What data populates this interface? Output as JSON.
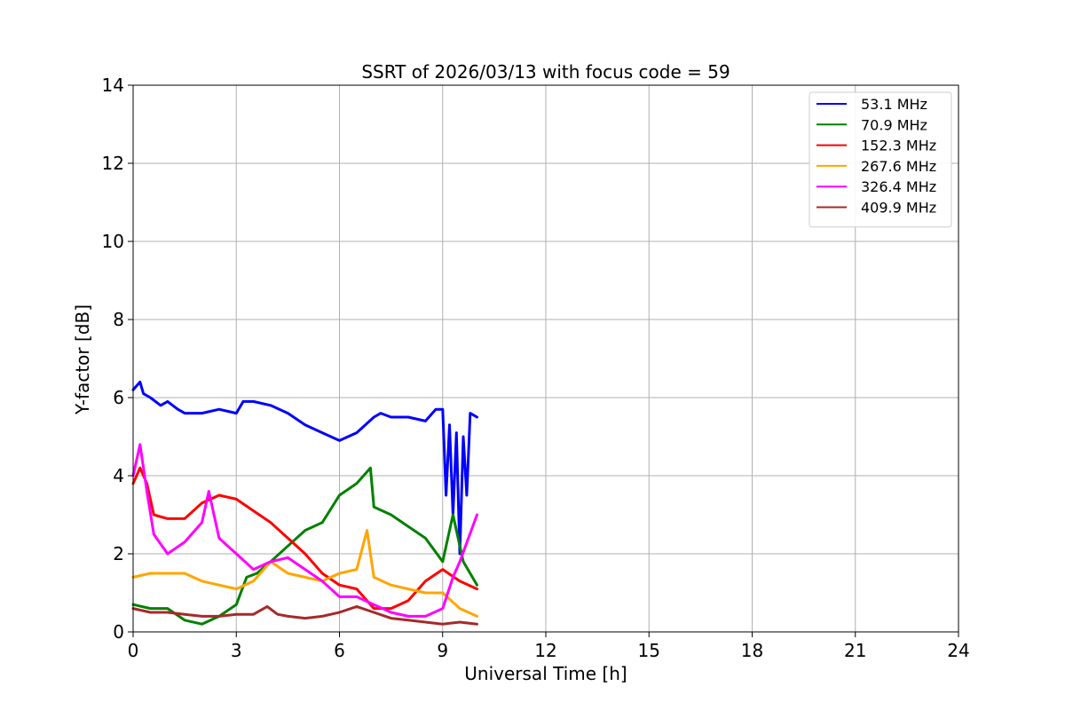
{
  "chart_data": {
    "type": "line",
    "title": "SSRT of 2026/03/13 with focus code = 59",
    "xlabel": "Universal Time [h]",
    "ylabel": "Y-factor [dB]",
    "xlim": [
      0,
      24
    ],
    "ylim": [
      0,
      14
    ],
    "xticks": [
      0,
      3,
      6,
      9,
      12,
      15,
      18,
      21,
      24
    ],
    "yticks": [
      0,
      2,
      4,
      6,
      8,
      10,
      12,
      14
    ],
    "grid": true,
    "legend_position": "top-right",
    "series": [
      {
        "name": " 53.1 MHz",
        "color": "#0000ff",
        "x": [
          0.0,
          0.2,
          0.3,
          0.5,
          0.8,
          1.0,
          1.3,
          1.5,
          2.0,
          2.5,
          3.0,
          3.2,
          3.5,
          4.0,
          4.5,
          5.0,
          5.5,
          6.0,
          6.5,
          7.0,
          7.2,
          7.5,
          8.0,
          8.5,
          8.8,
          9.0,
          9.1,
          9.2,
          9.3,
          9.4,
          9.5,
          9.6,
          9.7,
          9.8,
          10.0
        ],
        "y": [
          6.2,
          6.4,
          6.1,
          6.0,
          5.8,
          5.9,
          5.7,
          5.6,
          5.6,
          5.7,
          5.6,
          5.9,
          5.9,
          5.8,
          5.6,
          5.3,
          5.1,
          4.9,
          5.1,
          5.5,
          5.6,
          5.5,
          5.5,
          5.4,
          5.7,
          5.7,
          3.5,
          5.3,
          3.0,
          5.1,
          2.0,
          5.0,
          3.5,
          5.6,
          5.5
        ]
      },
      {
        "name": " 70.9 MHz",
        "color": "#008000",
        "x": [
          0.0,
          0.5,
          1.0,
          1.5,
          2.0,
          2.5,
          3.0,
          3.3,
          3.6,
          4.0,
          4.5,
          5.0,
          5.5,
          6.0,
          6.5,
          6.9,
          7.0,
          7.5,
          8.0,
          8.5,
          9.0,
          9.3,
          9.6,
          10.0
        ],
        "y": [
          0.7,
          0.6,
          0.6,
          0.3,
          0.2,
          0.4,
          0.7,
          1.4,
          1.5,
          1.8,
          2.2,
          2.6,
          2.8,
          3.5,
          3.8,
          4.2,
          3.2,
          3.0,
          2.7,
          2.4,
          1.8,
          3.0,
          1.8,
          1.2
        ]
      },
      {
        "name": "152.3 MHz",
        "color": "#ff0000",
        "x": [
          0.0,
          0.2,
          0.4,
          0.6,
          1.0,
          1.5,
          2.0,
          2.5,
          3.0,
          3.5,
          4.0,
          4.5,
          5.0,
          5.5,
          6.0,
          6.5,
          7.0,
          7.5,
          8.0,
          8.5,
          9.0,
          9.5,
          10.0
        ],
        "y": [
          3.8,
          4.2,
          3.8,
          3.0,
          2.9,
          2.9,
          3.3,
          3.5,
          3.4,
          3.1,
          2.8,
          2.4,
          2.0,
          1.5,
          1.2,
          1.1,
          0.6,
          0.6,
          0.8,
          1.3,
          1.6,
          1.3,
          1.1
        ]
      },
      {
        "name": "267.6 MHz",
        "color": "#ffa500",
        "x": [
          0.0,
          0.5,
          1.0,
          1.5,
          2.0,
          2.5,
          3.0,
          3.5,
          4.0,
          4.5,
          5.0,
          5.5,
          6.0,
          6.5,
          6.8,
          7.0,
          7.5,
          8.0,
          8.5,
          9.0,
          9.5,
          10.0
        ],
        "y": [
          1.4,
          1.5,
          1.5,
          1.5,
          1.3,
          1.2,
          1.1,
          1.3,
          1.8,
          1.5,
          1.4,
          1.3,
          1.5,
          1.6,
          2.6,
          1.4,
          1.2,
          1.1,
          1.0,
          1.0,
          0.6,
          0.4
        ]
      },
      {
        "name": "326.4 MHz",
        "color": "#ff00ff",
        "x": [
          0.0,
          0.2,
          0.4,
          0.6,
          1.0,
          1.5,
          2.0,
          2.2,
          2.5,
          3.0,
          3.5,
          4.0,
          4.5,
          5.0,
          5.5,
          6.0,
          6.5,
          7.0,
          7.5,
          8.0,
          8.5,
          9.0,
          9.3,
          9.5,
          10.0
        ],
        "y": [
          4.0,
          4.8,
          3.6,
          2.5,
          2.0,
          2.3,
          2.8,
          3.6,
          2.4,
          2.0,
          1.6,
          1.8,
          1.9,
          1.6,
          1.3,
          0.9,
          0.9,
          0.7,
          0.5,
          0.4,
          0.4,
          0.6,
          1.4,
          1.8,
          3.0
        ]
      },
      {
        "name": "409.9 MHz",
        "color": "#a52a2a",
        "x": [
          0.0,
          0.5,
          1.0,
          1.5,
          2.0,
          2.5,
          3.0,
          3.5,
          3.9,
          4.2,
          4.5,
          5.0,
          5.5,
          6.0,
          6.5,
          7.0,
          7.5,
          8.0,
          8.5,
          9.0,
          9.5,
          10.0
        ],
        "y": [
          0.6,
          0.5,
          0.5,
          0.45,
          0.4,
          0.4,
          0.45,
          0.45,
          0.65,
          0.45,
          0.4,
          0.35,
          0.4,
          0.5,
          0.65,
          0.5,
          0.35,
          0.3,
          0.25,
          0.2,
          0.25,
          0.2
        ]
      }
    ]
  }
}
